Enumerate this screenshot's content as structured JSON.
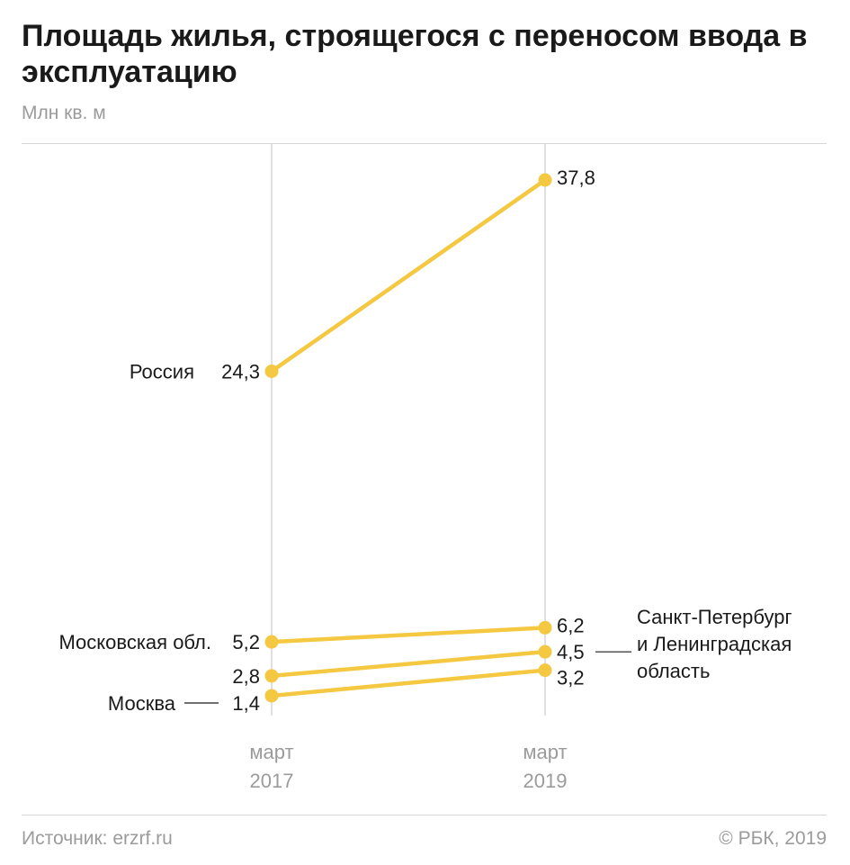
{
  "title": "Площадь жилья, строящегося с переносом ввода в эксплуатацию",
  "unit": "Млн кв. м",
  "source": "Источник: erzrf.ru",
  "copyright": "© РБК, 2019",
  "colors": {
    "line": "#f5c842",
    "axis": "#d6d6d6",
    "muted": "#9b9b9b",
    "text": "#1a1a1a"
  },
  "chart_data": {
    "type": "line",
    "title": "Площадь жилья, строящегося с переносом ввода в эксплуатацию",
    "ylabel": "Млн кв. м",
    "xlabel": "",
    "x": [
      [
        "март",
        "2017"
      ],
      [
        "март",
        "2019"
      ]
    ],
    "ylim": [
      0,
      40
    ],
    "grid": true,
    "series": [
      {
        "name": "Россия",
        "values": [
          24.3,
          37.8
        ],
        "labels": [
          "24,3",
          "37,8"
        ]
      },
      {
        "name": "Московская обл.",
        "values": [
          5.2,
          6.2
        ],
        "labels": [
          "5,2",
          "6,2"
        ]
      },
      {
        "name": "Санкт-Петербург и Ленинградская область",
        "values": [
          2.8,
          4.5
        ],
        "labels": [
          "2,8",
          "4,5"
        ]
      },
      {
        "name": "Москва",
        "values": [
          1.4,
          3.2
        ],
        "labels": [
          "1,4",
          "3,2"
        ]
      }
    ],
    "spb_label_lines": [
      "Санкт-Петербург",
      "и Ленинградская",
      "область"
    ]
  }
}
